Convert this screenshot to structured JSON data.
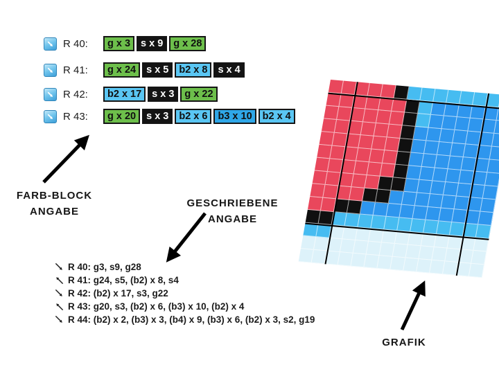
{
  "legend": {
    "rows": [
      {
        "label": "R 40:",
        "blocks": [
          {
            "text": "g x 3",
            "type": "g"
          },
          {
            "text": "s x 9",
            "type": "s"
          },
          {
            "text": "g x 28",
            "type": "g"
          }
        ]
      },
      {
        "label": "R 41:",
        "blocks": [
          {
            "text": "g x 24",
            "type": "g"
          },
          {
            "text": "s x 5",
            "type": "s"
          },
          {
            "text": "b2 x 8",
            "type": "b2"
          },
          {
            "text": "s x 4",
            "type": "s"
          }
        ]
      },
      {
        "label": "R 42:",
        "blocks": [
          {
            "text": "b2 x 17",
            "type": "b2"
          },
          {
            "text": "s x 3",
            "type": "s"
          },
          {
            "text": "g x 22",
            "type": "g"
          }
        ]
      },
      {
        "label": "R 43:",
        "blocks": [
          {
            "text": "g x 20",
            "type": "g"
          },
          {
            "text": "s x 3",
            "type": "s"
          },
          {
            "text": "b2 x 6",
            "type": "b2"
          },
          {
            "text": "b3 x 10",
            "type": "b3"
          },
          {
            "text": "b2 x 4",
            "type": "b2"
          }
        ]
      }
    ],
    "block_colors": {
      "g": "#6dbf4b",
      "s": "#141414",
      "b2": "#5ac6f3",
      "b3": "#2fa7e8"
    }
  },
  "labels": {
    "farb_block_line1": "FARB-BLOCK",
    "farb_block_line2": "ANGABE",
    "geschriebene_line1": "GESCHRIEBENE",
    "geschriebene_line2": "ANGABE",
    "grafik": "GRAFIK"
  },
  "written": {
    "rows": [
      {
        "direction": "down-right",
        "text": "R 40: g3, s9, g28"
      },
      {
        "direction": "up-left",
        "text": "R 41: g24, s5, (b2) x 8, s4"
      },
      {
        "direction": "down-right",
        "text": "R 42: (b2) x 17, s3, g22"
      },
      {
        "direction": "up-left",
        "text": "R 43: g20, s3, (b2) x 6, (b3) x 10, (b2) x 4"
      },
      {
        "direction": "down-right",
        "text": "R 44: (b2) x 2, (b3) x 3, (b4) x 9, (b3) x 6, (b2) x 3, s2, g19"
      }
    ]
  },
  "icons": {
    "legend_row_icon": "diagonal-arrow-se-button",
    "written_row_icons": "diagonal-direction-arrows"
  },
  "chart": {
    "type": "heatmap",
    "description_colors": {
      "R": "#e9475c",
      "K": "#101010",
      "B": "#2e96ee",
      "C": "#46bcf1",
      "P": "#ddf2fa"
    },
    "pattern": [
      "RRRRRKCCCCCCCC",
      "RRRRRRKCBBBBBB",
      "RRRRRRKCBBBBBB",
      "RRRRRRKBBBBBBB",
      "RRRRRRKBBBBBBB",
      "RRRRRRKBBBBBBB",
      "RRRRRRKBBBBBBB",
      "RRRRRKKBBBBBBB",
      "RRRRKKBBBBBBBB",
      "RRKKBBBBBBBBBB",
      "KKCCCCCCCCCCCC",
      "CCPPPPPPPPPPPP",
      "PPPPPPPPPPPPPP",
      "PPPPPPPPPPPPPP"
    ]
  }
}
